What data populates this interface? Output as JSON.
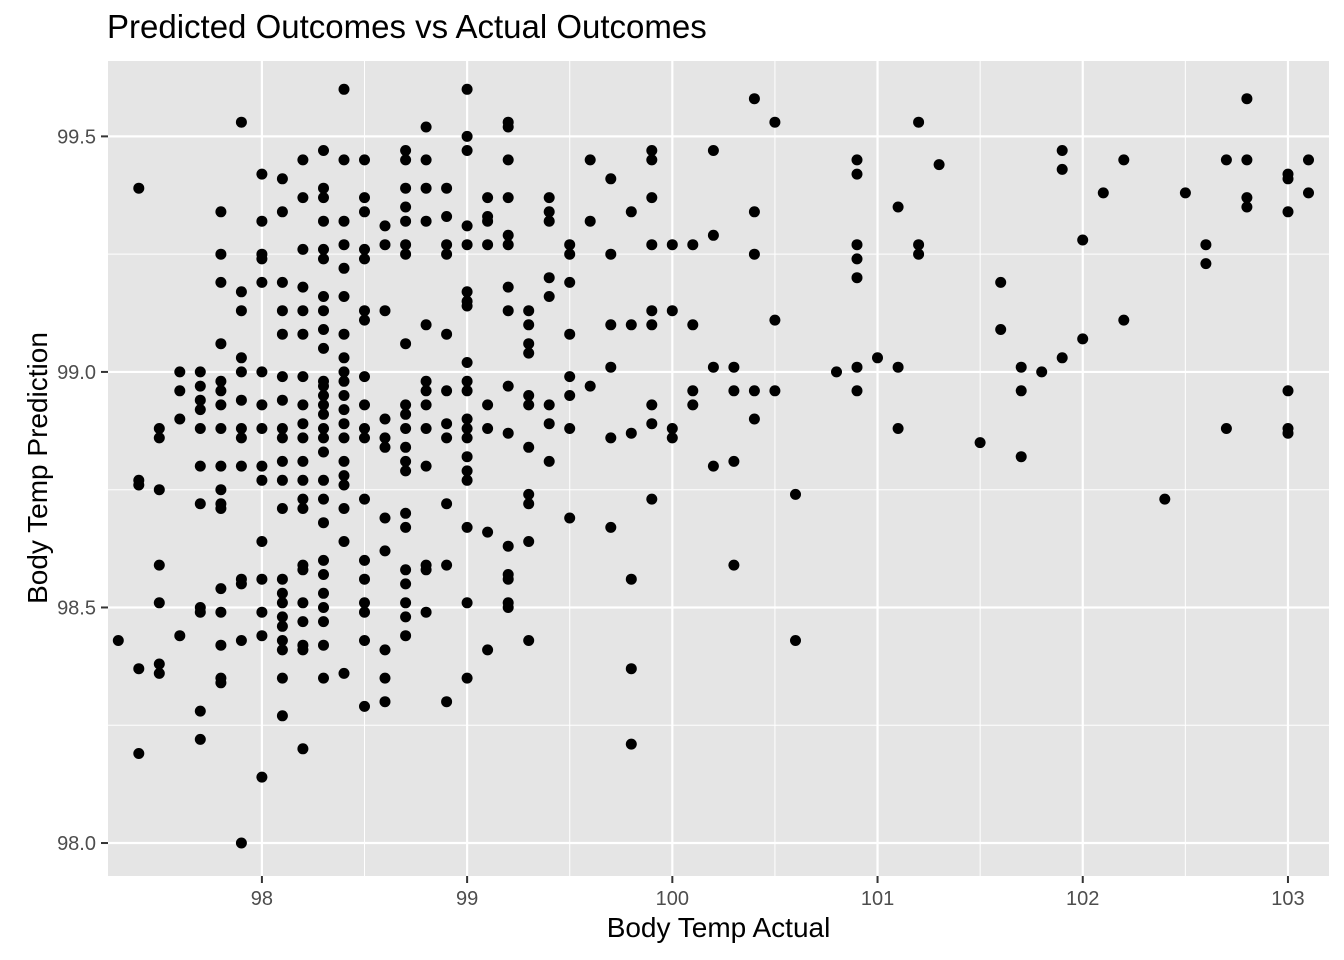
{
  "chart_data": {
    "type": "scatter",
    "title": "Predicted Outcomes vs Actual Outcomes",
    "xlabel": "Body Temp Actual",
    "ylabel": "Body Temp Prediction",
    "xlim": [
      97.25,
      103.2
    ],
    "ylim": [
      97.93,
      99.66
    ],
    "x_ticks": [
      "98",
      "99",
      "100",
      "101",
      "102",
      "103"
    ],
    "y_ticks": [
      "98.0",
      "98.5",
      "99.0",
      "99.5"
    ],
    "grid": true,
    "colors": {
      "panel": "#e5e5e5",
      "grid": "#ffffff",
      "point": "#000000",
      "tick_text": "#4d4d4d"
    },
    "points": [
      [
        97.3,
        98.43
      ],
      [
        97.4,
        99.39
      ],
      [
        97.4,
        98.77
      ],
      [
        97.4,
        98.76
      ],
      [
        97.4,
        98.37
      ],
      [
        97.4,
        98.19
      ],
      [
        97.5,
        98.88
      ],
      [
        97.5,
        98.86
      ],
      [
        97.5,
        98.75
      ],
      [
        97.5,
        98.59
      ],
      [
        97.5,
        98.51
      ],
      [
        97.5,
        98.38
      ],
      [
        97.5,
        98.36
      ],
      [
        97.6,
        99.0
      ],
      [
        97.6,
        98.96
      ],
      [
        97.6,
        98.9
      ],
      [
        97.6,
        98.44
      ],
      [
        97.7,
        99.0
      ],
      [
        97.7,
        98.97
      ],
      [
        97.7,
        98.94
      ],
      [
        97.7,
        98.92
      ],
      [
        97.7,
        98.88
      ],
      [
        97.7,
        98.8
      ],
      [
        97.7,
        98.72
      ],
      [
        97.7,
        98.5
      ],
      [
        97.7,
        98.49
      ],
      [
        97.7,
        98.28
      ],
      [
        97.7,
        98.22
      ],
      [
        97.8,
        99.34
      ],
      [
        97.8,
        99.25
      ],
      [
        97.8,
        99.19
      ],
      [
        97.8,
        99.06
      ],
      [
        97.8,
        98.98
      ],
      [
        97.8,
        98.96
      ],
      [
        97.8,
        98.93
      ],
      [
        97.8,
        98.88
      ],
      [
        97.8,
        98.8
      ],
      [
        97.8,
        98.75
      ],
      [
        97.8,
        98.72
      ],
      [
        97.8,
        98.71
      ],
      [
        97.8,
        98.54
      ],
      [
        97.8,
        98.49
      ],
      [
        97.8,
        98.42
      ],
      [
        97.8,
        98.35
      ],
      [
        97.8,
        98.34
      ],
      [
        97.9,
        99.53
      ],
      [
        97.9,
        99.17
      ],
      [
        97.9,
        99.13
      ],
      [
        97.9,
        99.03
      ],
      [
        97.9,
        99.0
      ],
      [
        97.9,
        98.94
      ],
      [
        97.9,
        98.88
      ],
      [
        97.9,
        98.86
      ],
      [
        97.9,
        98.8
      ],
      [
        97.9,
        98.56
      ],
      [
        97.9,
        98.55
      ],
      [
        97.9,
        98.43
      ],
      [
        97.9,
        98.0
      ],
      [
        98.0,
        99.42
      ],
      [
        98.0,
        99.32
      ],
      [
        98.0,
        99.25
      ],
      [
        98.0,
        99.24
      ],
      [
        98.0,
        99.19
      ],
      [
        98.0,
        99.0
      ],
      [
        98.0,
        98.93
      ],
      [
        98.0,
        98.88
      ],
      [
        98.0,
        98.8
      ],
      [
        98.0,
        98.77
      ],
      [
        98.0,
        98.64
      ],
      [
        98.0,
        98.56
      ],
      [
        98.0,
        98.49
      ],
      [
        98.0,
        98.44
      ],
      [
        98.0,
        98.14
      ],
      [
        98.1,
        99.41
      ],
      [
        98.1,
        99.34
      ],
      [
        98.1,
        99.19
      ],
      [
        98.1,
        99.13
      ],
      [
        98.1,
        99.08
      ],
      [
        98.1,
        98.99
      ],
      [
        98.1,
        98.94
      ],
      [
        98.1,
        98.88
      ],
      [
        98.1,
        98.86
      ],
      [
        98.1,
        98.81
      ],
      [
        98.1,
        98.77
      ],
      [
        98.1,
        98.71
      ],
      [
        98.1,
        98.56
      ],
      [
        98.1,
        98.53
      ],
      [
        98.1,
        98.51
      ],
      [
        98.1,
        98.48
      ],
      [
        98.1,
        98.46
      ],
      [
        98.1,
        98.43
      ],
      [
        98.1,
        98.41
      ],
      [
        98.1,
        98.35
      ],
      [
        98.1,
        98.27
      ],
      [
        98.2,
        99.45
      ],
      [
        98.2,
        99.37
      ],
      [
        98.2,
        99.26
      ],
      [
        98.2,
        99.18
      ],
      [
        98.2,
        99.13
      ],
      [
        98.2,
        99.08
      ],
      [
        98.2,
        98.99
      ],
      [
        98.2,
        98.93
      ],
      [
        98.2,
        98.89
      ],
      [
        98.2,
        98.86
      ],
      [
        98.2,
        98.81
      ],
      [
        98.2,
        98.77
      ],
      [
        98.2,
        98.73
      ],
      [
        98.2,
        98.71
      ],
      [
        98.2,
        98.59
      ],
      [
        98.2,
        98.58
      ],
      [
        98.2,
        98.51
      ],
      [
        98.2,
        98.47
      ],
      [
        98.2,
        98.42
      ],
      [
        98.2,
        98.41
      ],
      [
        98.2,
        98.2
      ],
      [
        98.3,
        99.47
      ],
      [
        98.3,
        99.39
      ],
      [
        98.3,
        99.37
      ],
      [
        98.3,
        99.32
      ],
      [
        98.3,
        99.26
      ],
      [
        98.3,
        99.24
      ],
      [
        98.3,
        99.16
      ],
      [
        98.3,
        99.13
      ],
      [
        98.3,
        99.09
      ],
      [
        98.3,
        99.05
      ],
      [
        98.3,
        98.98
      ],
      [
        98.3,
        98.97
      ],
      [
        98.3,
        98.95
      ],
      [
        98.3,
        98.93
      ],
      [
        98.3,
        98.91
      ],
      [
        98.3,
        98.88
      ],
      [
        98.3,
        98.86
      ],
      [
        98.3,
        98.83
      ],
      [
        98.3,
        98.77
      ],
      [
        98.3,
        98.73
      ],
      [
        98.3,
        98.68
      ],
      [
        98.3,
        98.6
      ],
      [
        98.3,
        98.57
      ],
      [
        98.3,
        98.53
      ],
      [
        98.3,
        98.5
      ],
      [
        98.3,
        98.47
      ],
      [
        98.3,
        98.42
      ],
      [
        98.3,
        98.35
      ],
      [
        98.4,
        99.6
      ],
      [
        98.4,
        99.45
      ],
      [
        98.4,
        99.32
      ],
      [
        98.4,
        99.27
      ],
      [
        98.4,
        99.22
      ],
      [
        98.4,
        99.16
      ],
      [
        98.4,
        99.08
      ],
      [
        98.4,
        99.03
      ],
      [
        98.4,
        99.0
      ],
      [
        98.4,
        98.98
      ],
      [
        98.4,
        98.95
      ],
      [
        98.4,
        98.92
      ],
      [
        98.4,
        98.89
      ],
      [
        98.4,
        98.86
      ],
      [
        98.4,
        98.81
      ],
      [
        98.4,
        98.78
      ],
      [
        98.4,
        98.76
      ],
      [
        98.4,
        98.71
      ],
      [
        98.4,
        98.64
      ],
      [
        98.4,
        98.36
      ],
      [
        98.5,
        99.45
      ],
      [
        98.5,
        99.37
      ],
      [
        98.5,
        99.34
      ],
      [
        98.5,
        99.26
      ],
      [
        98.5,
        99.24
      ],
      [
        98.5,
        99.13
      ],
      [
        98.5,
        99.11
      ],
      [
        98.5,
        98.99
      ],
      [
        98.5,
        98.93
      ],
      [
        98.5,
        98.88
      ],
      [
        98.5,
        98.86
      ],
      [
        98.5,
        98.73
      ],
      [
        98.5,
        98.6
      ],
      [
        98.5,
        98.56
      ],
      [
        98.5,
        98.51
      ],
      [
        98.5,
        98.49
      ],
      [
        98.5,
        98.43
      ],
      [
        98.5,
        98.29
      ],
      [
        98.6,
        99.31
      ],
      [
        98.6,
        99.27
      ],
      [
        98.6,
        99.13
      ],
      [
        98.6,
        98.9
      ],
      [
        98.6,
        98.86
      ],
      [
        98.6,
        98.84
      ],
      [
        98.6,
        98.69
      ],
      [
        98.6,
        98.62
      ],
      [
        98.6,
        98.41
      ],
      [
        98.6,
        98.35
      ],
      [
        98.6,
        98.3
      ],
      [
        98.7,
        99.47
      ],
      [
        98.7,
        99.45
      ],
      [
        98.7,
        99.39
      ],
      [
        98.7,
        99.35
      ],
      [
        98.7,
        99.32
      ],
      [
        98.7,
        99.27
      ],
      [
        98.7,
        99.25
      ],
      [
        98.7,
        99.06
      ],
      [
        98.7,
        98.93
      ],
      [
        98.7,
        98.91
      ],
      [
        98.7,
        98.88
      ],
      [
        98.7,
        98.84
      ],
      [
        98.7,
        98.81
      ],
      [
        98.7,
        98.79
      ],
      [
        98.7,
        98.7
      ],
      [
        98.7,
        98.67
      ],
      [
        98.7,
        98.58
      ],
      [
        98.7,
        98.55
      ],
      [
        98.7,
        98.51
      ],
      [
        98.7,
        98.48
      ],
      [
        98.7,
        98.44
      ],
      [
        98.8,
        99.52
      ],
      [
        98.8,
        99.45
      ],
      [
        98.8,
        99.39
      ],
      [
        98.8,
        99.32
      ],
      [
        98.8,
        99.1
      ],
      [
        98.8,
        98.98
      ],
      [
        98.8,
        98.96
      ],
      [
        98.8,
        98.93
      ],
      [
        98.8,
        98.88
      ],
      [
        98.8,
        98.8
      ],
      [
        98.8,
        98.59
      ],
      [
        98.8,
        98.58
      ],
      [
        98.8,
        98.49
      ],
      [
        98.9,
        99.39
      ],
      [
        98.9,
        99.33
      ],
      [
        98.9,
        99.27
      ],
      [
        98.9,
        99.25
      ],
      [
        98.9,
        99.08
      ],
      [
        98.9,
        98.96
      ],
      [
        98.9,
        98.89
      ],
      [
        98.9,
        98.86
      ],
      [
        98.9,
        98.72
      ],
      [
        98.9,
        98.59
      ],
      [
        98.9,
        98.3
      ],
      [
        99.0,
        99.6
      ],
      [
        99.0,
        99.5
      ],
      [
        99.0,
        99.47
      ],
      [
        99.0,
        99.31
      ],
      [
        99.0,
        99.27
      ],
      [
        99.0,
        99.17
      ],
      [
        99.0,
        99.15
      ],
      [
        99.0,
        99.14
      ],
      [
        99.0,
        99.02
      ],
      [
        99.0,
        98.98
      ],
      [
        99.0,
        98.96
      ],
      [
        99.0,
        98.9
      ],
      [
        99.0,
        98.88
      ],
      [
        99.0,
        98.86
      ],
      [
        99.0,
        98.82
      ],
      [
        99.0,
        98.79
      ],
      [
        99.0,
        98.77
      ],
      [
        99.0,
        98.67
      ],
      [
        99.0,
        98.51
      ],
      [
        99.0,
        98.35
      ],
      [
        99.1,
        99.37
      ],
      [
        99.1,
        99.33
      ],
      [
        99.1,
        99.32
      ],
      [
        99.1,
        99.27
      ],
      [
        99.1,
        98.93
      ],
      [
        99.1,
        98.88
      ],
      [
        99.1,
        98.66
      ],
      [
        99.1,
        98.41
      ],
      [
        99.2,
        99.53
      ],
      [
        99.2,
        99.52
      ],
      [
        99.2,
        99.45
      ],
      [
        99.2,
        99.37
      ],
      [
        99.2,
        99.29
      ],
      [
        99.2,
        99.27
      ],
      [
        99.2,
        99.18
      ],
      [
        99.2,
        99.13
      ],
      [
        99.2,
        98.97
      ],
      [
        99.2,
        98.87
      ],
      [
        99.2,
        98.63
      ],
      [
        99.2,
        98.57
      ],
      [
        99.2,
        98.56
      ],
      [
        99.2,
        98.51
      ],
      [
        99.2,
        98.5
      ],
      [
        99.3,
        99.13
      ],
      [
        99.3,
        99.1
      ],
      [
        99.3,
        99.06
      ],
      [
        99.3,
        99.04
      ],
      [
        99.3,
        98.95
      ],
      [
        99.3,
        98.93
      ],
      [
        99.3,
        98.84
      ],
      [
        99.3,
        98.74
      ],
      [
        99.3,
        98.72
      ],
      [
        99.3,
        98.64
      ],
      [
        99.3,
        98.43
      ],
      [
        99.4,
        99.37
      ],
      [
        99.4,
        99.34
      ],
      [
        99.4,
        99.32
      ],
      [
        99.4,
        99.2
      ],
      [
        99.4,
        99.16
      ],
      [
        99.4,
        98.93
      ],
      [
        99.4,
        98.89
      ],
      [
        99.4,
        98.81
      ],
      [
        99.5,
        99.27
      ],
      [
        99.5,
        99.25
      ],
      [
        99.5,
        99.19
      ],
      [
        99.5,
        99.08
      ],
      [
        99.5,
        98.99
      ],
      [
        99.5,
        98.95
      ],
      [
        99.5,
        98.88
      ],
      [
        99.5,
        98.69
      ],
      [
        99.6,
        99.45
      ],
      [
        99.6,
        99.32
      ],
      [
        99.6,
        98.97
      ],
      [
        99.7,
        99.41
      ],
      [
        99.7,
        99.25
      ],
      [
        99.7,
        99.1
      ],
      [
        99.7,
        99.01
      ],
      [
        99.7,
        98.86
      ],
      [
        99.7,
        98.67
      ],
      [
        99.8,
        99.34
      ],
      [
        99.8,
        99.1
      ],
      [
        99.8,
        98.87
      ],
      [
        99.8,
        98.56
      ],
      [
        99.8,
        98.37
      ],
      [
        99.8,
        98.21
      ],
      [
        99.9,
        99.47
      ],
      [
        99.9,
        99.45
      ],
      [
        99.9,
        99.37
      ],
      [
        99.9,
        99.27
      ],
      [
        99.9,
        99.13
      ],
      [
        99.9,
        99.1
      ],
      [
        99.9,
        98.93
      ],
      [
        99.9,
        98.89
      ],
      [
        99.9,
        98.73
      ],
      [
        100.0,
        99.27
      ],
      [
        100.0,
        99.13
      ],
      [
        100.0,
        98.88
      ],
      [
        100.0,
        98.86
      ],
      [
        100.1,
        99.27
      ],
      [
        100.1,
        99.1
      ],
      [
        100.1,
        98.96
      ],
      [
        100.1,
        98.93
      ],
      [
        100.2,
        99.47
      ],
      [
        100.2,
        99.29
      ],
      [
        100.2,
        99.01
      ],
      [
        100.2,
        98.8
      ],
      [
        100.3,
        99.01
      ],
      [
        100.3,
        98.96
      ],
      [
        100.3,
        98.81
      ],
      [
        100.3,
        98.59
      ],
      [
        100.4,
        99.58
      ],
      [
        100.4,
        99.34
      ],
      [
        100.4,
        99.25
      ],
      [
        100.4,
        98.96
      ],
      [
        100.4,
        98.9
      ],
      [
        100.5,
        99.53
      ],
      [
        100.5,
        99.11
      ],
      [
        100.5,
        98.96
      ],
      [
        100.6,
        98.74
      ],
      [
        100.6,
        98.43
      ],
      [
        100.8,
        99.0
      ],
      [
        100.9,
        99.45
      ],
      [
        100.9,
        99.42
      ],
      [
        100.9,
        99.27
      ],
      [
        100.9,
        99.24
      ],
      [
        100.9,
        99.2
      ],
      [
        100.9,
        99.01
      ],
      [
        100.9,
        98.96
      ],
      [
        101.0,
        99.03
      ],
      [
        101.1,
        99.35
      ],
      [
        101.1,
        99.01
      ],
      [
        101.1,
        98.88
      ],
      [
        101.2,
        99.53
      ],
      [
        101.2,
        99.27
      ],
      [
        101.2,
        99.25
      ],
      [
        101.3,
        99.44
      ],
      [
        101.5,
        98.85
      ],
      [
        101.6,
        99.19
      ],
      [
        101.6,
        99.09
      ],
      [
        101.7,
        99.01
      ],
      [
        101.7,
        98.96
      ],
      [
        101.7,
        98.82
      ],
      [
        101.8,
        99.0
      ],
      [
        101.9,
        99.47
      ],
      [
        101.9,
        99.43
      ],
      [
        101.9,
        99.03
      ],
      [
        102.0,
        99.28
      ],
      [
        102.0,
        99.07
      ],
      [
        102.1,
        99.38
      ],
      [
        102.2,
        99.45
      ],
      [
        102.2,
        99.11
      ],
      [
        102.4,
        98.73
      ],
      [
        102.5,
        99.38
      ],
      [
        102.6,
        99.27
      ],
      [
        102.6,
        99.23
      ],
      [
        102.7,
        99.45
      ],
      [
        102.7,
        98.88
      ],
      [
        102.8,
        99.58
      ],
      [
        102.8,
        99.45
      ],
      [
        102.8,
        99.37
      ],
      [
        102.8,
        99.35
      ],
      [
        103.0,
        99.42
      ],
      [
        103.0,
        99.41
      ],
      [
        103.0,
        99.34
      ],
      [
        103.0,
        98.96
      ],
      [
        103.0,
        98.88
      ],
      [
        103.0,
        98.87
      ],
      [
        103.1,
        99.45
      ],
      [
        103.1,
        99.38
      ]
    ]
  }
}
